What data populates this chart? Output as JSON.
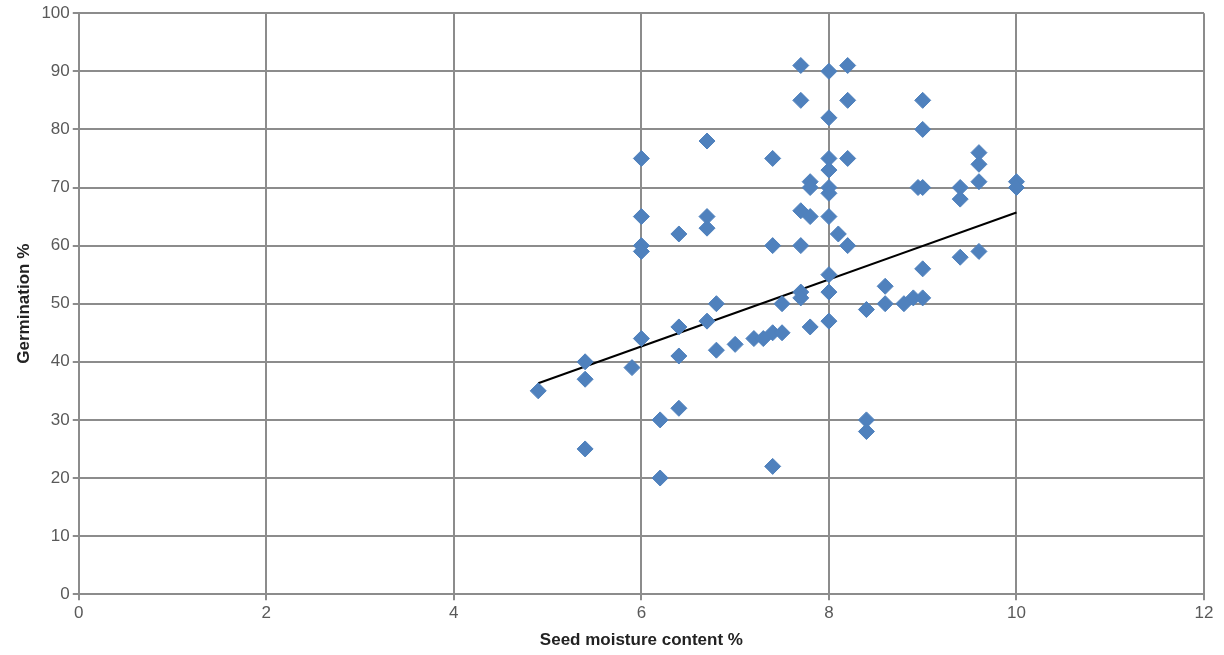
{
  "chart_data": {
    "type": "scatter",
    "xlabel": "Seed moisture content %",
    "ylabel": "Germination %",
    "xlim": [
      0,
      12
    ],
    "xticks": [
      0,
      2,
      4,
      6,
      8,
      10,
      12
    ],
    "ylim": [
      0,
      100
    ],
    "yticks": [
      0,
      10,
      20,
      30,
      40,
      50,
      60,
      70,
      80,
      90,
      100
    ],
    "grid": true,
    "legend": false,
    "marker": "diamond",
    "series": [
      {
        "color": "#4f81bd",
        "x": [
          4.9,
          5.4,
          5.4,
          5.4,
          5.9,
          6,
          6,
          6,
          6,
          6,
          6.2,
          6.2,
          6.4,
          6.4,
          6.4,
          6.4,
          6.7,
          6.7,
          6.7,
          6.7,
          6.8,
          6.8,
          7,
          7.2,
          7.3,
          7.4,
          7.4,
          7.4,
          7.4,
          7.5,
          7.5,
          7.7,
          7.7,
          7.7,
          7.7,
          7.7,
          7.7,
          7.8,
          7.8,
          7.8,
          7.8,
          8,
          8,
          8,
          8,
          8,
          8,
          8,
          8,
          8,
          8,
          8.1,
          8.2,
          8.2,
          8.2,
          8.2,
          8.4,
          8.4,
          8.4,
          8.6,
          8.6,
          8.8,
          8.9,
          9,
          9,
          8.95,
          9,
          9,
          9,
          9.4,
          9.4,
          9.4,
          9.6,
          9.6,
          9.6,
          9.6,
          10,
          10
        ],
        "values": [
          35,
          40,
          37,
          25,
          39,
          75,
          65,
          60,
          59,
          44,
          30,
          20,
          62,
          46,
          41,
          32,
          78,
          65,
          63,
          47,
          50,
          42,
          43,
          44,
          44,
          45,
          75,
          60,
          22,
          50,
          45,
          91,
          85,
          66,
          60,
          52,
          51,
          71,
          70,
          65,
          46,
          90,
          82,
          75,
          73,
          70,
          69,
          65,
          55,
          52,
          47,
          62,
          91,
          85,
          75,
          60,
          49,
          30,
          28,
          53,
          50,
          50,
          51,
          51,
          80,
          70,
          70,
          85,
          56,
          70,
          68,
          58,
          76,
          74,
          71,
          59,
          71,
          70
        ]
      },
      {
        "type": "line",
        "color": "#000000",
        "marker": "none",
        "x": [
          4.9,
          10
        ],
        "values": [
          36.3,
          65.7
        ]
      }
    ]
  }
}
